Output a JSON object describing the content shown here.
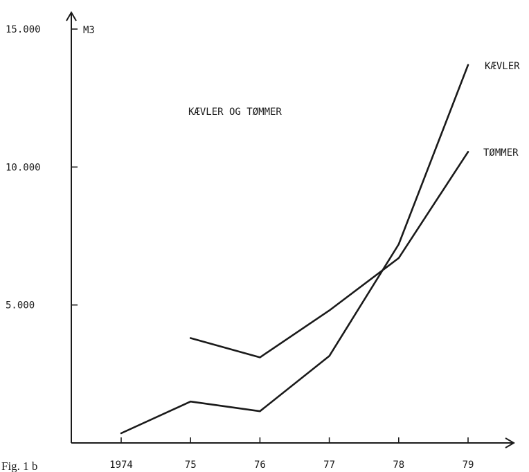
{
  "chart_data": {
    "type": "line",
    "title": "KÆVLER OG TØMMER",
    "ylabel": "M3",
    "xlabel": "",
    "categories": [
      "1974",
      "75",
      "76",
      "77",
      "78",
      "79"
    ],
    "y_ticks": [
      {
        "value": 5000,
        "label": "5.000"
      },
      {
        "value": 10000,
        "label": "10.000"
      },
      {
        "value": 15000,
        "label": "15.000"
      }
    ],
    "ylim": [
      0,
      15000
    ],
    "grid": false,
    "legend": "none",
    "series": [
      {
        "name": "KÆVLER",
        "values": [
          350,
          1500,
          1150,
          3150,
          7200,
          13700
        ]
      },
      {
        "name": "TØMMER",
        "values": [
          null,
          3800,
          3100,
          4800,
          6700,
          10550
        ]
      }
    ]
  },
  "caption": "Fig. 1 b"
}
